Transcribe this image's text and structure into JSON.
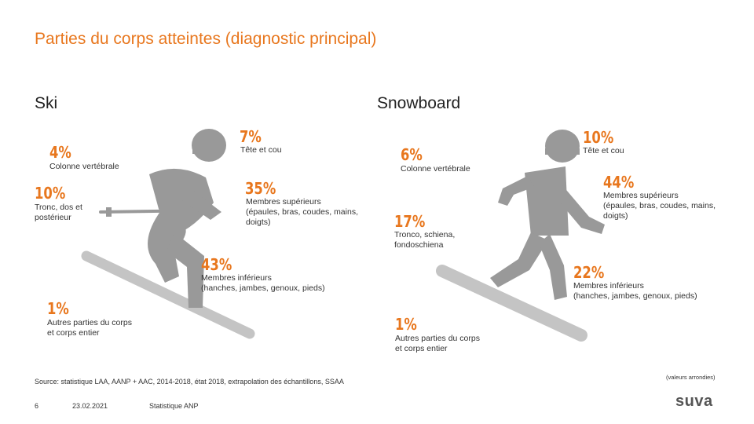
{
  "title": "Parties du corps atteintes (diagnostic principal)",
  "ski": {
    "heading": "Ski",
    "items": [
      {
        "pct": "7%",
        "label": "Tête et cou"
      },
      {
        "pct": "4%",
        "label": "Colonne vertébrale"
      },
      {
        "pct": "35%",
        "label": "Membres supérieurs\n(épaules, bras, coudes, mains,\ndoigts)"
      },
      {
        "pct": "10%",
        "label": "Tronc, dos et\npostérieur"
      },
      {
        "pct": "43%",
        "label": "Membres inférieurs\n(hanches, jambes, genoux, pieds)"
      },
      {
        "pct": "1%",
        "label": "Autres parties du corps\net corps entier"
      }
    ]
  },
  "snowboard": {
    "heading": "Snowboard",
    "items": [
      {
        "pct": "10%",
        "label": "Tête et cou"
      },
      {
        "pct": "6%",
        "label": "Colonne vertébrale"
      },
      {
        "pct": "44%",
        "label": "Membres supérieurs\n(épaules, bras, coudes, mains,\ndoigts)"
      },
      {
        "pct": "17%",
        "label": "Tronco, schiena,\nfondoschiena"
      },
      {
        "pct": "22%",
        "label": "Membres inférieurs\n(hanches, jambes, genoux, pieds)"
      },
      {
        "pct": "1%",
        "label": "Autres parties du corps\net corps entier"
      }
    ]
  },
  "note": "(valeurs arrondies)",
  "source": "Source: statistique LAA, AANP + AAC, 2014-2018, état 2018, extrapolation des échantillons, SSAA",
  "footer": {
    "page": "6",
    "date": "23.02.2021",
    "label": "Statistique ANP"
  },
  "logo": "suva",
  "colors": {
    "accent": "#e8771e",
    "figure": "#999999",
    "equipment": "#c4c4c4"
  },
  "icons": {
    "ski": "skier-pictogram",
    "snowboard": "snowboarder-pictogram"
  }
}
